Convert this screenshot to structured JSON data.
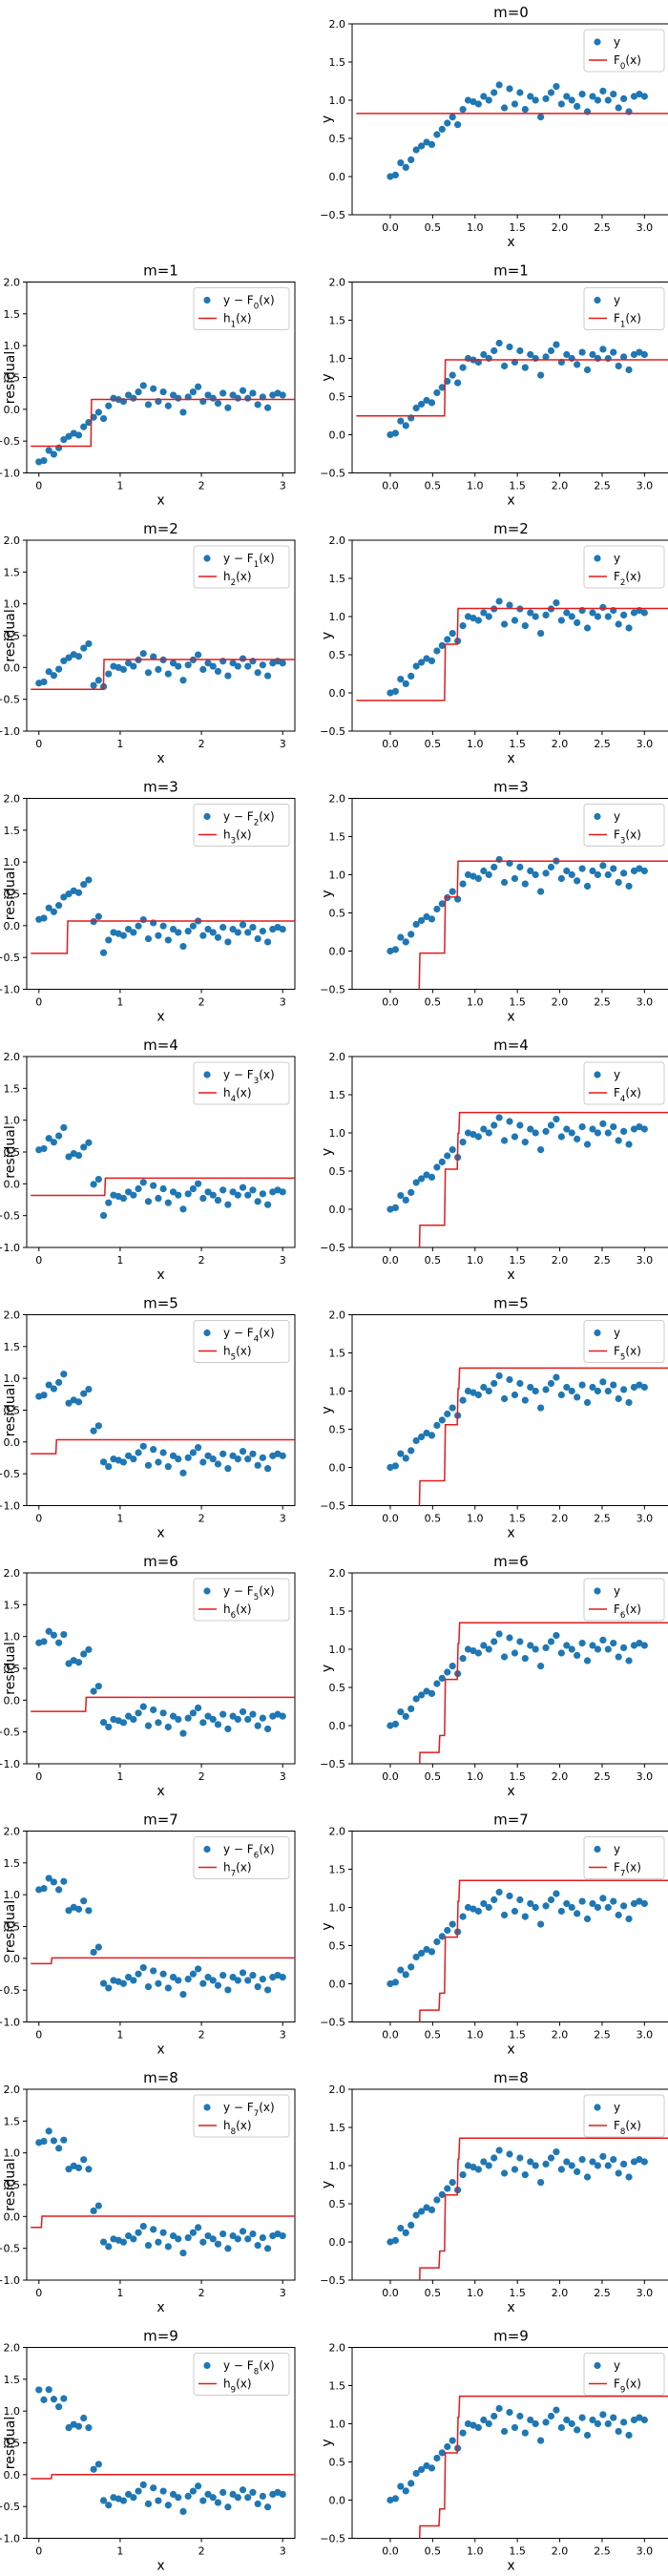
{
  "figure": {
    "points_x": [
      0.0,
      0.0612,
      0.1224,
      0.1837,
      0.2449,
      0.3061,
      0.3673,
      0.4286,
      0.4898,
      0.551,
      0.6122,
      0.6735,
      0.7347,
      0.7959,
      0.8571,
      0.9184,
      0.9796,
      1.0408,
      1.102,
      1.1633,
      1.2245,
      1.2857,
      1.3469,
      1.4082,
      1.4694,
      1.5306,
      1.5918,
      1.6531,
      1.7143,
      1.7755,
      1.8367,
      1.898,
      1.9592,
      2.0204,
      2.0816,
      2.1429,
      2.2041,
      2.2653,
      2.3265,
      2.3878,
      2.449,
      2.5102,
      2.5714,
      2.6327,
      2.6939,
      2.7551,
      2.8163,
      2.8776,
      2.9388,
      3.0
    ],
    "points_y": [
      0.0,
      0.02,
      0.18,
      0.12,
      0.22,
      0.35,
      0.4,
      0.45,
      0.42,
      0.55,
      0.62,
      0.7,
      0.78,
      0.68,
      0.88,
      1.0,
      0.98,
      0.95,
      1.05,
      1.0,
      1.1,
      1.2,
      0.9,
      1.15,
      0.95,
      1.1,
      0.88,
      1.05,
      1.0,
      0.78,
      1.02,
      1.1,
      1.18,
      0.95,
      1.05,
      1.0,
      0.92,
      1.08,
      0.85,
      1.05,
      1.0,
      1.12,
      1.0,
      1.08,
      0.9,
      1.02,
      0.85,
      1.05,
      1.08,
      1.05
    ],
    "legend_y": "y",
    "xlabel": "x",
    "ylabel_right": "y",
    "ylabel_left": "residual",
    "left_x_ticks": [
      "0",
      "1",
      "2",
      "3"
    ],
    "right_x_ticks": [
      "0.0",
      "0.5",
      "1.0",
      "1.5",
      "2.0",
      "2.5",
      "3.0"
    ],
    "left_y_ticks": [
      "−1.0",
      "−0.5",
      "0.0",
      "0.5",
      "1.0",
      "1.5",
      "2.0"
    ],
    "right_y_ticks": [
      "−0.5",
      "0.0",
      "0.5",
      "1.0",
      "1.5",
      "2.0"
    ],
    "colors": {
      "points": "#1f77b4",
      "fit": "#e31a1c",
      "axes": "#000000"
    }
  },
  "panels": [
    {
      "m": 0,
      "title": "m=0",
      "right_legend": "F_0(x)",
      "left_legend_a": null,
      "left_legend_b": null
    },
    {
      "m": 1,
      "title": "m=1",
      "right_legend": "F_1(x)",
      "left_legend_a": "y − F_0(x)",
      "left_legend_b": "h_1(x)"
    },
    {
      "m": 2,
      "title": "m=2",
      "right_legend": "F_2(x)",
      "left_legend_a": "y − F_1(x)",
      "left_legend_b": "h_2(x)"
    },
    {
      "m": 3,
      "title": "m=3",
      "right_legend": "F_3(x)",
      "left_legend_a": "y − F_2(x)",
      "left_legend_b": "h_3(x)"
    },
    {
      "m": 4,
      "title": "m=4",
      "right_legend": "F_4(x)",
      "left_legend_a": "y − F_3(x)",
      "left_legend_b": "h_4(x)"
    },
    {
      "m": 5,
      "title": "m=5",
      "right_legend": "F_5(x)",
      "left_legend_a": "y − F_4(x)",
      "left_legend_b": "h_5(x)"
    },
    {
      "m": 6,
      "title": "m=6",
      "right_legend": "F_6(x)",
      "left_legend_a": "y − F_5(x)",
      "left_legend_b": "h_6(x)"
    },
    {
      "m": 7,
      "title": "m=7",
      "right_legend": "F_7(x)",
      "left_legend_a": "y − F_6(x)",
      "left_legend_b": "h_7(x)"
    },
    {
      "m": 8,
      "title": "m=8",
      "right_legend": "F_8(x)",
      "left_legend_a": "y − F_7(x)",
      "left_legend_b": "h_8(x)"
    },
    {
      "m": 9,
      "title": "m=9",
      "right_legend": "F_9(x)",
      "left_legend_a": "y − F_8(x)",
      "left_legend_b": "h_9(x)"
    }
  ],
  "chart_data": {
    "type": "scatter",
    "description_series": "y",
    "x": [
      0.0,
      0.0612,
      0.1224,
      0.1837,
      0.2449,
      0.3061,
      0.3673,
      0.4286,
      0.4898,
      0.551,
      0.6122,
      0.6735,
      0.7347,
      0.7959,
      0.8571,
      0.9184,
      0.9796,
      1.0408,
      1.102,
      1.1633,
      1.2245,
      1.2857,
      1.3469,
      1.4082,
      1.4694,
      1.5306,
      1.5918,
      1.6531,
      1.7143,
      1.7755,
      1.8367,
      1.898,
      1.9592,
      2.0204,
      2.0816,
      2.1429,
      2.2041,
      2.2653,
      2.3265,
      2.3878,
      2.449,
      2.5102,
      2.5714,
      2.6327,
      2.6939,
      2.7551,
      2.8163,
      2.8776,
      2.9388,
      3.0
    ],
    "y": [
      0.0,
      0.02,
      0.18,
      0.12,
      0.22,
      0.35,
      0.4,
      0.45,
      0.42,
      0.55,
      0.62,
      0.7,
      0.78,
      0.68,
      0.88,
      1.0,
      0.98,
      0.95,
      1.05,
      1.0,
      1.1,
      1.2,
      0.9,
      1.15,
      0.95,
      1.1,
      0.88,
      1.05,
      1.0,
      0.78,
      1.02,
      1.1,
      1.18,
      0.95,
      1.05,
      1.0,
      0.92,
      1.08,
      0.85,
      1.05,
      1.0,
      1.12,
      1.0,
      1.08,
      0.9,
      1.02,
      0.85,
      1.05,
      1.08,
      1.05
    ],
    "xlabel": "x",
    "ylabel_right": "y",
    "ylabel_left": "residual",
    "xlim_left": [
      -0.15,
      3.15
    ],
    "ylim_left": [
      -1.0,
      2.0
    ],
    "xlim_right": [
      -0.45,
      3.3
    ],
    "ylim_right": [
      -0.5,
      2.0
    ],
    "grid": false,
    "legend_position": "upper right",
    "fit_model": "gradient boosting with regression stumps",
    "stumps": [
      {
        "m": 0,
        "split": null,
        "left": 0.8264,
        "right": 0.8264
      },
      {
        "m": 1,
        "split": 0.6429,
        "left": -0.58,
        "right": 0.1546
      },
      {
        "m": 2,
        "split": 0.7959,
        "left": -0.3443,
        "right": 0.1252
      },
      {
        "m": 3,
        "split": 0.3469,
        "left": -0.4356,
        "right": 0.0716
      },
      {
        "m": 4,
        "split": 0.8163,
        "left": -0.1831,
        "right": 0.0896
      },
      {
        "m": 5,
        "split": 0.2143,
        "left": -0.1845,
        "right": 0.0348
      },
      {
        "m": 6,
        "split": 0.5816,
        "left": -0.1771,
        "right": 0.0442
      },
      {
        "m": 7,
        "split": 0.1531,
        "left": -0.0838,
        "right": 0.0069
      },
      {
        "m": 8,
        "split": 0.0306,
        "left": -0.1715,
        "right": 0.0053
      },
      {
        "m": 9,
        "split": 0.1531,
        "left": -0.0619,
        "right": 0.0022
      }
    ]
  }
}
